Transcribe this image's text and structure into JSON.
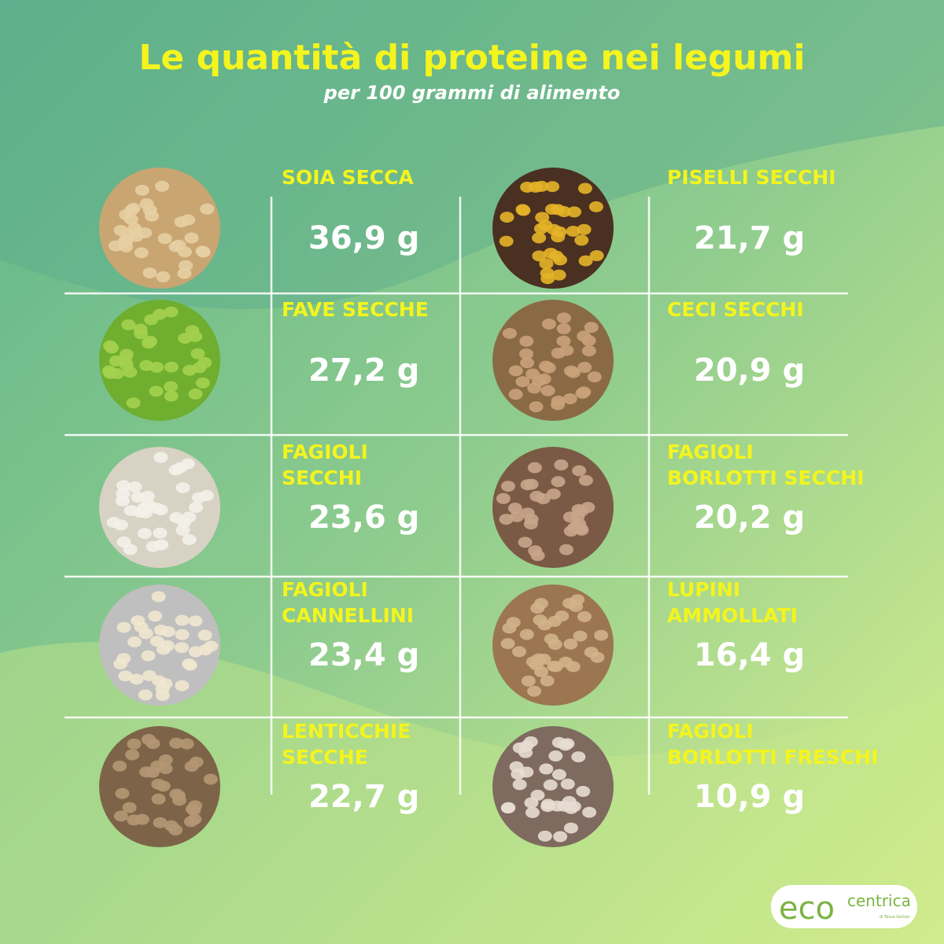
{
  "header": {
    "title": "Le quantità di proteine nei legumi",
    "subtitle": "per 100 grammi di alimento"
  },
  "items": [
    {
      "name": [
        "SOIA SECCA"
      ],
      "amount": "36,9 g"
    },
    {
      "name": [
        "PISELLI SECCHI"
      ],
      "amount": "21,7 g"
    },
    {
      "name": [
        "FAVE SECCHE"
      ],
      "amount": "27,2 g"
    },
    {
      "name": [
        "CECI SECCHI"
      ],
      "amount": "20,9 g"
    },
    {
      "name": [
        "FAGIOLI",
        "SECCHI"
      ],
      "amount": "23,6 g"
    },
    {
      "name": [
        "FAGIOLI",
        "BORLOTTI SECCHI"
      ],
      "amount": "20,2 g"
    },
    {
      "name": [
        "FAGIOLI",
        "CANNELLINI"
      ],
      "amount": "23,4 g"
    },
    {
      "name": [
        "LUPINI",
        "AMMOLLATI"
      ],
      "amount": "16,4 g"
    },
    {
      "name": [
        "LENTICCHIE",
        "SECCHE"
      ],
      "amount": "22,7 g"
    },
    {
      "name": [
        "FAGIOLI",
        "BORLOTTI FRESCHI"
      ],
      "amount": "10,9 g"
    }
  ],
  "logo": {
    "eco": "eco",
    "centrica": "centrica",
    "byline": "di Tessa Gelisio"
  }
}
